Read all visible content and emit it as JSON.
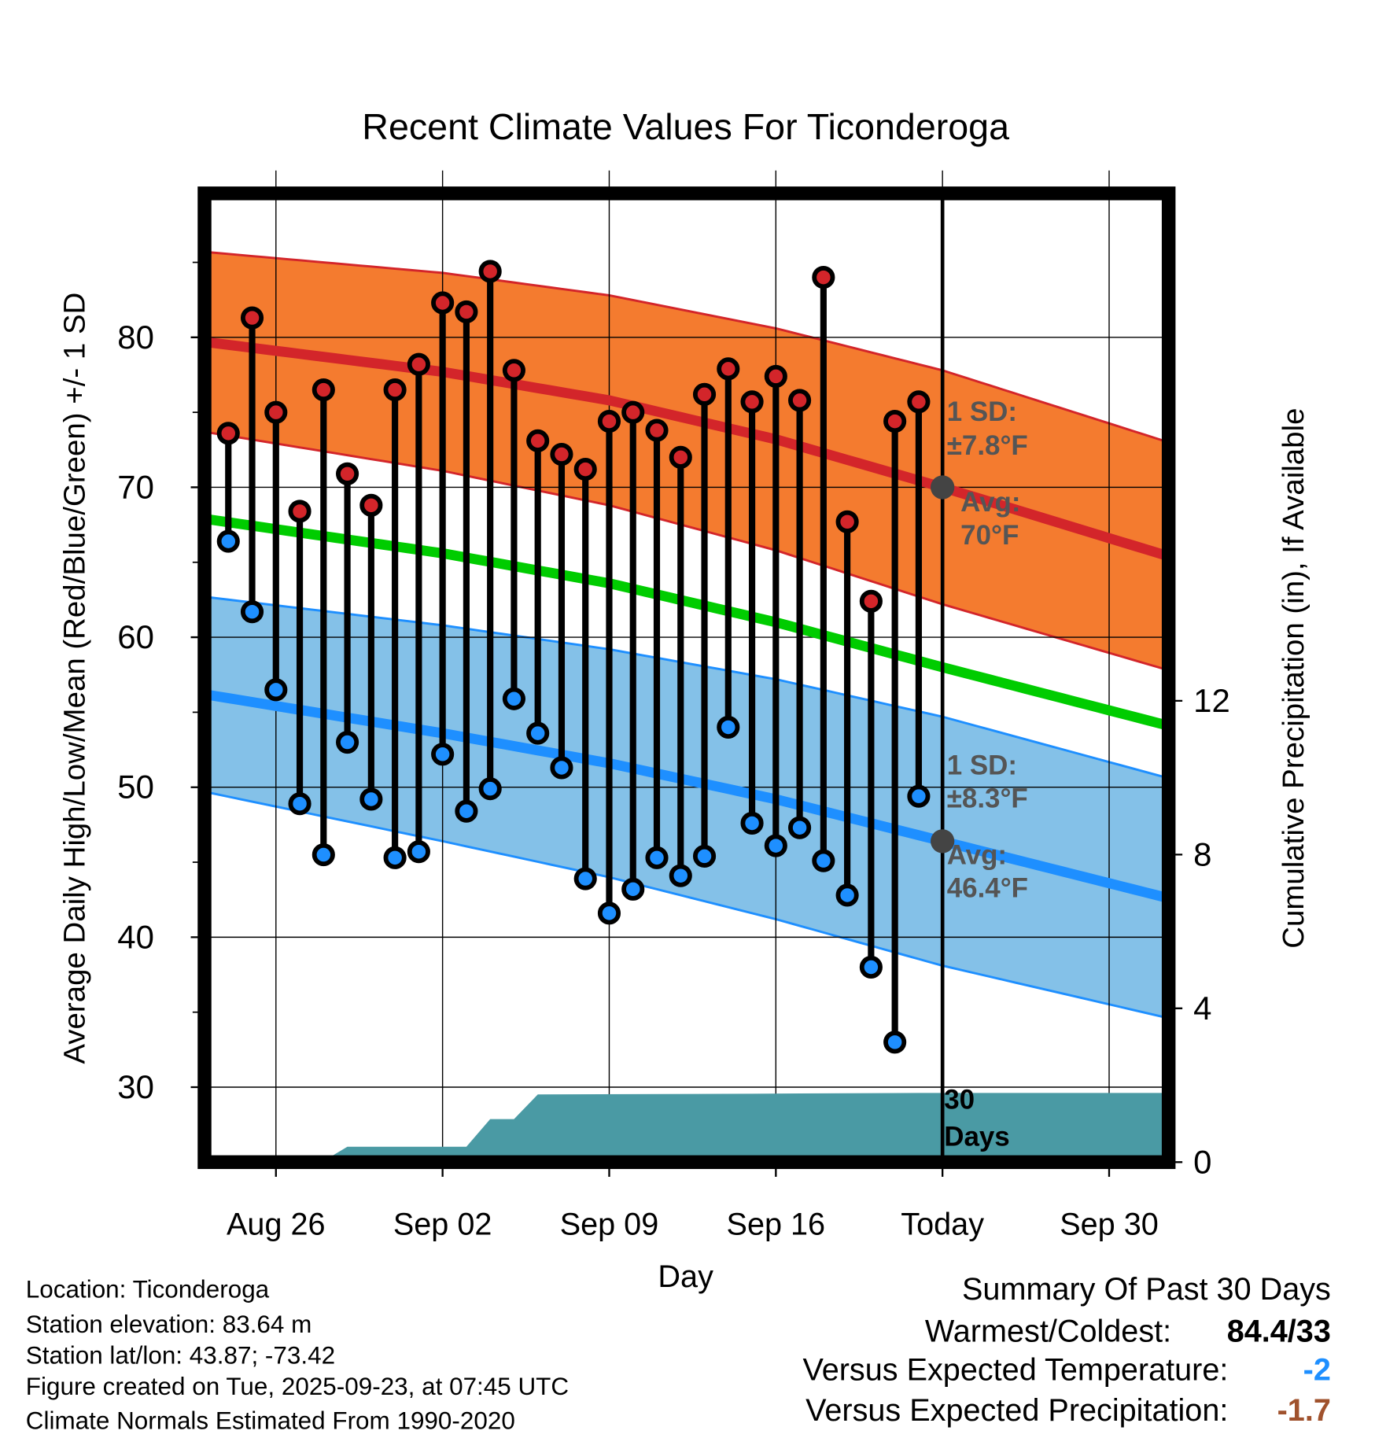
{
  "chart_data": {
    "type": "line",
    "title": "Recent Climate Values For Ticonderoga",
    "xlabel": "Day",
    "ylabel": "Average Daily High/Low/Mean (Red/Blue/Green) +/- 1 SD",
    "y2label": "Cumulative Precipitation (in), If Available",
    "x_unit": "days relative to Aug 26",
    "xlim": [
      -3,
      37.5
    ],
    "ylim": [
      25,
      89.6
    ],
    "y2lim": [
      0,
      25.2
    ],
    "x_ticks": [
      {
        "day": 0,
        "label": "Aug 26"
      },
      {
        "day": 7,
        "label": "Sep 02"
      },
      {
        "day": 14,
        "label": "Sep 09"
      },
      {
        "day": 21,
        "label": "Sep 16"
      },
      {
        "day": 28,
        "label": "Today"
      },
      {
        "day": 35,
        "label": "Sep 30"
      }
    ],
    "y_ticks": [
      30,
      40,
      50,
      60,
      70,
      80
    ],
    "y2_ticks": [
      0,
      4,
      8,
      12
    ],
    "grid": true,
    "today_day": 28,
    "observed": {
      "days": [
        -2,
        -1,
        0,
        1,
        2,
        3,
        4,
        5,
        6,
        7,
        8,
        9,
        10,
        11,
        12,
        13,
        14,
        15,
        16,
        17,
        18,
        19,
        20,
        21,
        22,
        23,
        24,
        25,
        26,
        27
      ],
      "high": [
        73.6,
        81.3,
        75.0,
        68.4,
        76.5,
        70.9,
        68.8,
        76.5,
        78.2,
        82.3,
        81.7,
        84.4,
        77.8,
        73.1,
        72.2,
        71.2,
        74.4,
        75.0,
        73.8,
        72.0,
        76.2,
        77.9,
        75.7,
        77.4,
        75.8,
        84.0,
        67.7,
        62.4,
        74.4,
        75.7
      ],
      "low": [
        66.4,
        61.7,
        56.5,
        48.9,
        45.5,
        53.0,
        49.2,
        45.3,
        45.7,
        52.2,
        48.4,
        49.9,
        55.9,
        53.6,
        51.3,
        43.9,
        41.6,
        43.2,
        45.3,
        44.1,
        45.4,
        54.0,
        47.6,
        46.1,
        47.3,
        45.1,
        42.8,
        38.0,
        33.0,
        49.4
      ]
    },
    "normals": {
      "days": [
        -3,
        7,
        14,
        21,
        28,
        37.5
      ],
      "high_avg": [
        79.7,
        77.7,
        75.8,
        73.2,
        70.0,
        65.4
      ],
      "high_sd": [
        6.0,
        6.6,
        7.0,
        7.4,
        7.8,
        7.6
      ],
      "mean": [
        67.9,
        65.6,
        63.6,
        61.0,
        58.0,
        54.1
      ],
      "low_avg": [
        56.2,
        53.6,
        51.6,
        49.2,
        46.4,
        42.6
      ],
      "low_sd": [
        6.5,
        7.2,
        7.6,
        8.0,
        8.3,
        8.0
      ]
    },
    "precip": {
      "days": [
        -3,
        0.9,
        2,
        3,
        8,
        9,
        10,
        11,
        20,
        27,
        37.5
      ],
      "cumulative": [
        0,
        0,
        0.03,
        0.4,
        0.4,
        1.12,
        1.12,
        1.76,
        1.78,
        1.8,
        1.8
      ]
    },
    "annotations": {
      "high_sd_label": "1 SD:",
      "high_sd_value": "±7.8°F",
      "high_avg_label": "Avg:",
      "high_avg_value": "70°F",
      "low_sd_label": "1 SD:",
      "low_sd_value": "±8.3°F",
      "low_avg_label": "Avg:",
      "low_avg_value": "46.4°F",
      "precip_label_1": "30",
      "precip_label_2": "Days"
    },
    "colors": {
      "high_band": "#f47b2f",
      "high_line": "#d3252a",
      "mean_line": "#00cc00",
      "low_band": "#84c1e8",
      "low_line": "#1e8fff",
      "precip": "#4a9aa4",
      "annotation": "#555555"
    }
  },
  "footer": {
    "location": "Location: Ticonderoga",
    "elevation": "Station elevation: 83.64 m",
    "latlon": "Station lat/lon: 43.87; -73.42",
    "created": "Figure created on Tue, 2025-09-23, at 07:45 UTC",
    "normals": "Climate Normals Estimated From 1990-2020"
  },
  "summary": {
    "title": "Summary Of Past 30 Days",
    "warmest_coldest_label": "Warmest/Coldest:",
    "warmest_coldest_value": "84.4/33",
    "temp_label": "Versus Expected Temperature:",
    "temp_value": "-2",
    "temp_color": "#1e8fff",
    "precip_label": "Versus Expected Precipitation:",
    "precip_value": "-1.7",
    "precip_color": "#a0522d"
  }
}
